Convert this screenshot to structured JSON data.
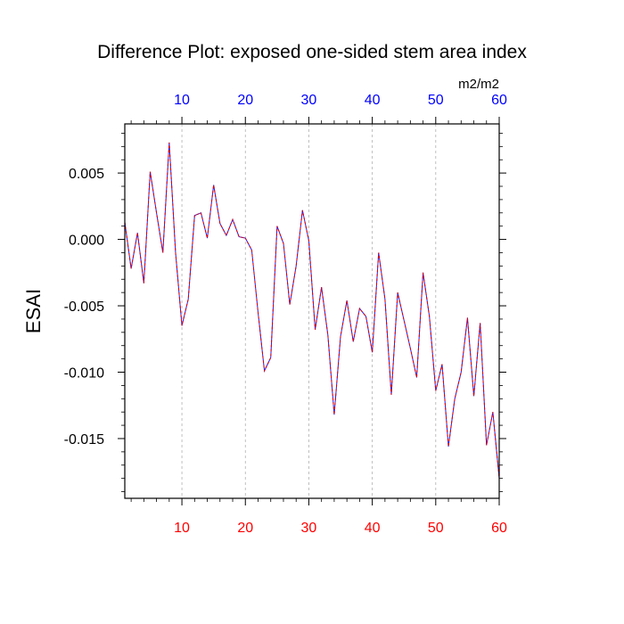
{
  "chart_data": {
    "type": "line",
    "title": "Difference Plot: exposed one-sided stem area index",
    "units": "m2/m2",
    "ylabel": "ESAI",
    "xlabel": "",
    "xlim": [
      1,
      60
    ],
    "ylim": [
      -0.0195,
      0.0087
    ],
    "x_ticks": [
      10,
      20,
      30,
      40,
      50,
      60
    ],
    "x_tick_labels": [
      "10",
      "20",
      "30",
      "40",
      "50",
      "60"
    ],
    "y_ticks": [
      0.005,
      0.0,
      -0.005,
      -0.01,
      -0.015
    ],
    "y_tick_labels": [
      "0.005",
      "0.000",
      "-0.005",
      "-0.010",
      "-0.015"
    ],
    "grid": "vertical dashed at x ticks",
    "colors": {
      "line": "#7a0fb4",
      "bottom_tick_labels": "#ff0000",
      "top_tick_labels": "#0000ff",
      "grid": "#b0b0b0"
    },
    "series": [
      {
        "x": [
          1,
          2,
          3,
          4,
          5,
          6,
          7,
          8,
          9,
          10,
          11,
          12,
          13,
          14,
          15,
          16,
          17,
          18,
          19,
          20,
          21,
          22,
          23,
          24,
          25,
          26,
          27,
          28,
          29,
          30,
          31,
          32,
          33,
          34,
          35,
          36,
          37,
          38,
          39,
          40,
          41,
          42,
          43,
          44,
          45,
          46,
          47,
          48,
          49,
          50,
          51,
          52,
          53,
          54,
          55,
          56,
          57,
          58,
          59,
          60
        ],
        "values": [
          0.0013,
          -0.0022,
          0.0005,
          -0.0033,
          0.0051,
          0.002,
          -0.001,
          0.0073,
          -0.001,
          -0.0065,
          -0.0045,
          0.0018,
          0.002,
          0.0001,
          0.0041,
          0.0012,
          0.0003,
          0.0015,
          0.0002,
          0.0001,
          -0.0008,
          -0.0055,
          -0.0099,
          -0.0089,
          0.001,
          -0.0003,
          -0.0049,
          -0.002,
          0.0022,
          -0.0001,
          -0.0068,
          -0.0036,
          -0.0072,
          -0.0132,
          -0.0073,
          -0.0046,
          -0.0077,
          -0.0052,
          -0.0058,
          -0.0085,
          -0.001,
          -0.0045,
          -0.0117,
          -0.004,
          -0.0061,
          -0.0082,
          -0.0104,
          -0.0025,
          -0.0058,
          -0.0114,
          -0.0094,
          -0.0156,
          -0.012,
          -0.01,
          -0.0059,
          -0.0118,
          -0.0063,
          -0.0155,
          -0.013,
          -0.018
        ]
      }
    ]
  }
}
